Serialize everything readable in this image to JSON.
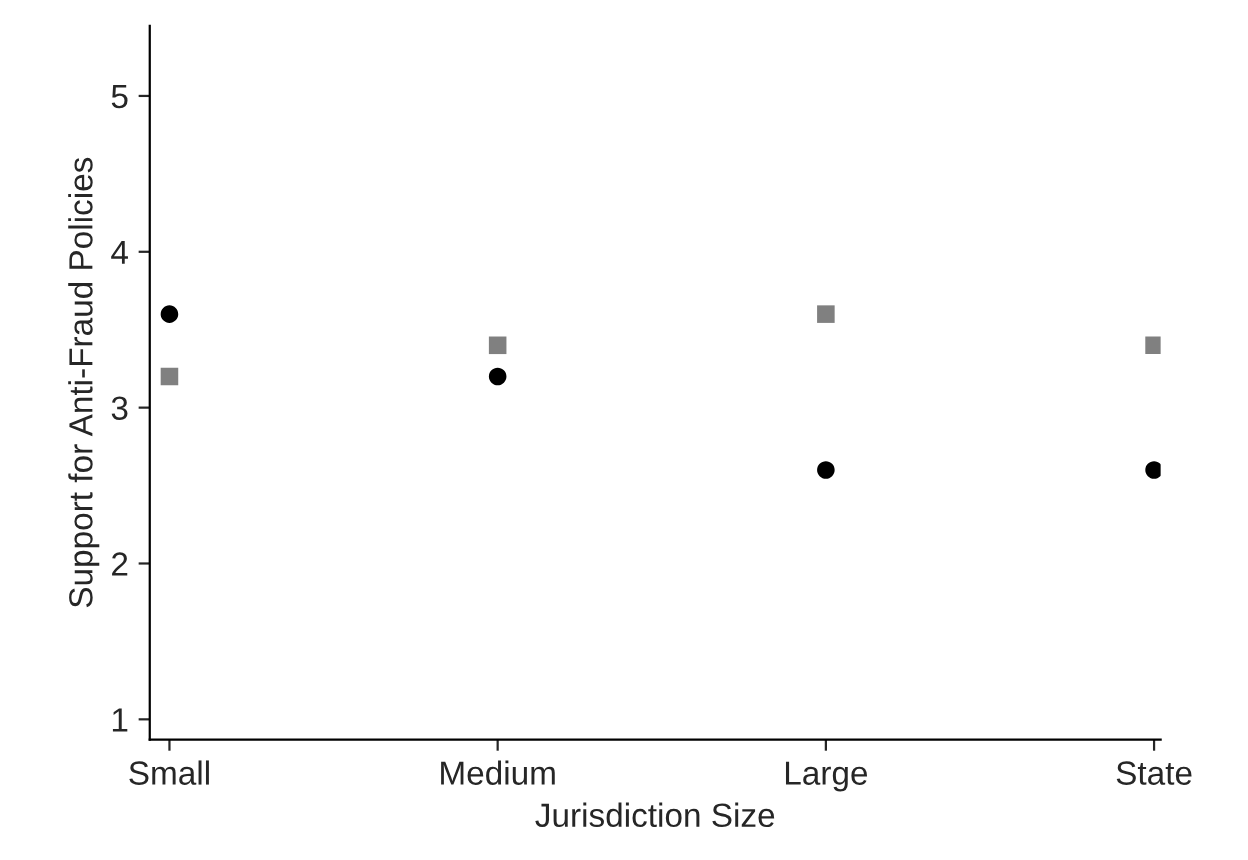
{
  "chart_data": {
    "type": "scatter",
    "xlabel": "Jurisdiction Size",
    "ylabel": "Support for Anti-Fraud Policies",
    "categories": [
      "Small",
      "Medium",
      "Large",
      "State"
    ],
    "series": [
      {
        "color": "#000000",
        "marker": "circle",
        "values": [
          3.6,
          3.2,
          2.6,
          2.6
        ]
      },
      {
        "color": "#808080",
        "marker": "square",
        "values": [
          3.2,
          3.4,
          3.6,
          3.4
        ]
      }
    ],
    "ylim": [
      0.87,
      5.45
    ],
    "yticks": [
      1,
      2,
      3,
      4,
      5
    ]
  }
}
